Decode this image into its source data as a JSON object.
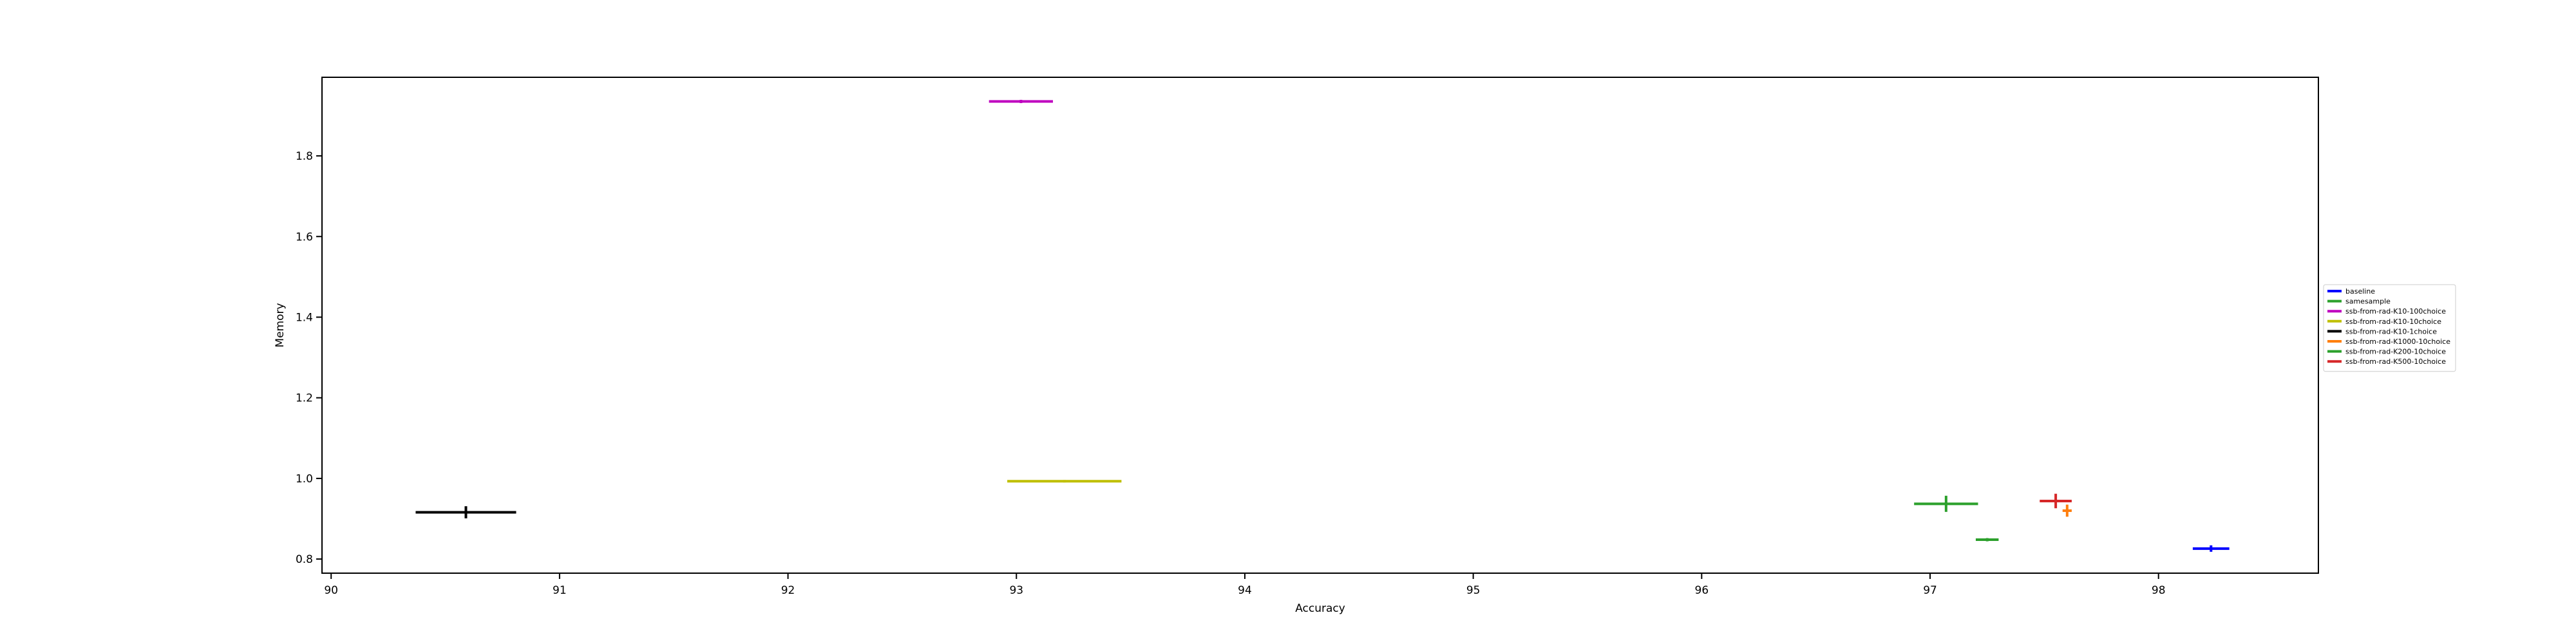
{
  "chart_data": {
    "type": "scatter",
    "xlabel": "Accuracy",
    "ylabel": "Memory",
    "xlim": [
      89.96,
      98.7
    ],
    "ylim": [
      0.765,
      1.995
    ],
    "x_ticks": [
      90,
      91,
      92,
      93,
      94,
      95,
      96,
      97,
      98
    ],
    "y_ticks": [
      0.8,
      1.0,
      1.2,
      1.4,
      1.6,
      1.8
    ],
    "grid": false,
    "legend_position": "right",
    "series": [
      {
        "name": "baseline",
        "color": "#0000ff",
        "x": 98.23,
        "y": 0.826,
        "x_err": 0.08,
        "y_err": 0.008
      },
      {
        "name": "samesample",
        "color": "#2ca02c",
        "x": 97.25,
        "y": 0.848,
        "x_err": 0.05,
        "y_err": 0.004
      },
      {
        "name": "ssb-from-rad-K10-100choice",
        "color": "#bf00bf",
        "x": 93.02,
        "y": 1.935,
        "x_err": 0.14,
        "y_err": 0.004
      },
      {
        "name": "ssb-from-rad-K10-10choice",
        "color": "#bfbf00",
        "x": 93.21,
        "y": 0.993,
        "x_err": 0.25,
        "y_err": 0.003
      },
      {
        "name": "ssb-from-rad-K10-1choice",
        "color": "#000000",
        "x": 90.59,
        "y": 0.916,
        "x_err": 0.22,
        "y_err": 0.015
      },
      {
        "name": "ssb-from-rad-K1000-10choice",
        "color": "#ff7f0e",
        "x": 97.6,
        "y": 0.92,
        "x_err": 0.02,
        "y_err": 0.015
      },
      {
        "name": "ssb-from-rad-K200-10choice",
        "color": "#2ca02c",
        "x": 97.07,
        "y": 0.937,
        "x_err": 0.14,
        "y_err": 0.02
      },
      {
        "name": "ssb-from-rad-K500-10choice",
        "color": "#d62728",
        "x": 97.55,
        "y": 0.944,
        "x_err": 0.07,
        "y_err": 0.018
      }
    ]
  }
}
